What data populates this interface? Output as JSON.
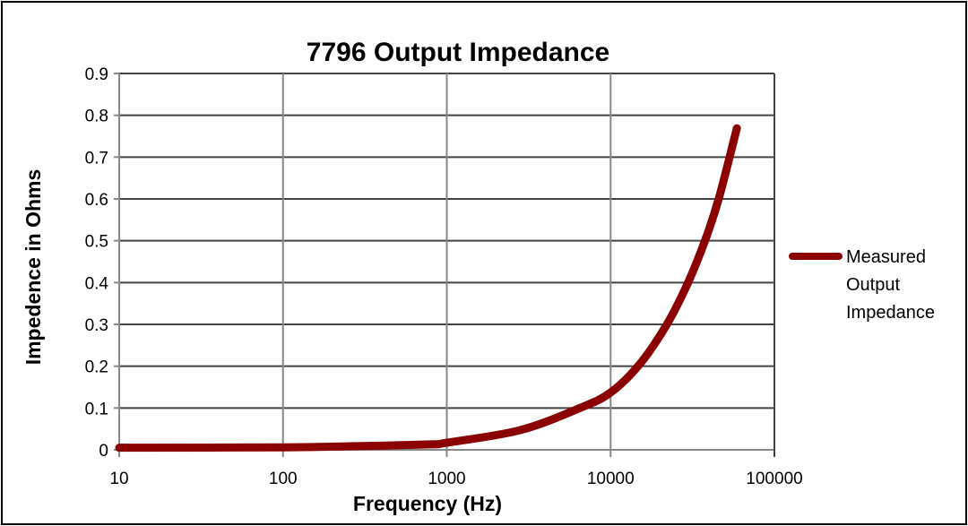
{
  "chart_data": {
    "type": "line",
    "title": "7796 Output Impedance",
    "xlabel": "Frequency (Hz)",
    "ylabel": "Impedence in Ohms",
    "xscale": "log",
    "xlim": [
      10,
      100000
    ],
    "ylim": [
      0,
      0.9
    ],
    "xticks": [
      "10",
      "100",
      "1000",
      "10000",
      "100000"
    ],
    "yticks": [
      "0",
      "0.1",
      "0.2",
      "0.3",
      "0.4",
      "0.5",
      "0.6",
      "0.7",
      "0.8",
      "0.9"
    ],
    "grid": true,
    "legend_position": "right",
    "series": [
      {
        "name": "Measured Output Impedance",
        "legend_lines": [
          "Measured",
          "Output",
          "Impedance"
        ],
        "color": "#8B0000",
        "x": [
          10,
          100,
          300,
          800,
          1000,
          2800,
          6500,
          10000,
          15000,
          21900,
          29400,
          38000,
          46000,
          59000
        ],
        "y": [
          0.005,
          0.006,
          0.009,
          0.013,
          0.017,
          0.047,
          0.1,
          0.137,
          0.204,
          0.298,
          0.396,
          0.504,
          0.604,
          0.769
        ]
      }
    ]
  }
}
